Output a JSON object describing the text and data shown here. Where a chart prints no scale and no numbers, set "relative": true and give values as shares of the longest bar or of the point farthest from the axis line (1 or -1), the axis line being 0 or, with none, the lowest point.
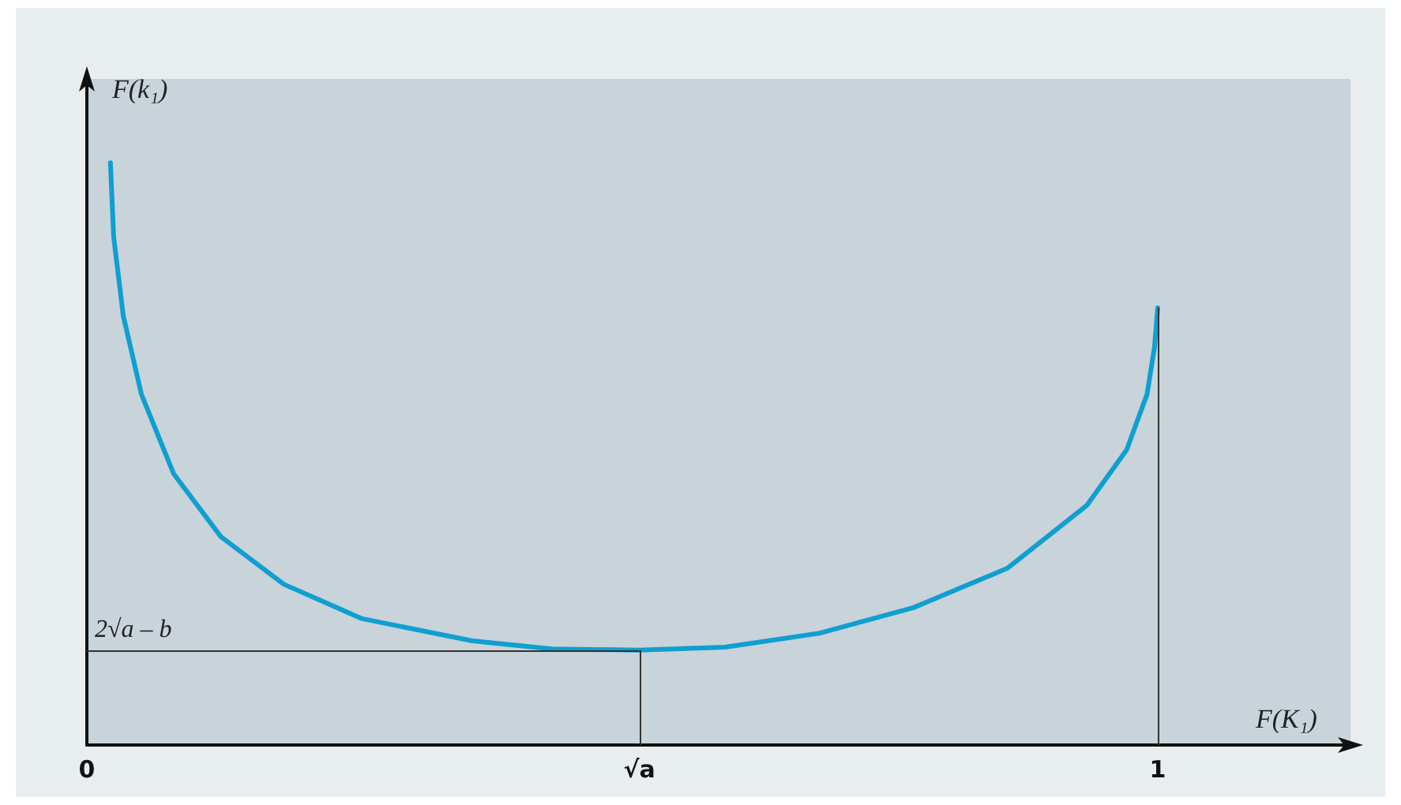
{
  "chart_data": {
    "type": "line",
    "relative": true,
    "xlabel": "F(K₁)",
    "ylabel": "F(k₁)",
    "xlim": [
      0,
      1.18
    ],
    "xticks": [
      0,
      {
        "value": 0.516,
        "label": "√a"
      },
      1
    ],
    "x": [
      0.022,
      0.025,
      0.034,
      0.051,
      0.081,
      0.125,
      0.184,
      0.257,
      0.36,
      0.434,
      0.516,
      0.596,
      0.684,
      0.772,
      0.86,
      0.934,
      0.971,
      0.99,
      0.997,
      1
    ],
    "series": [
      {
        "color": "#0f9fd0",
        "values": [
          1,
          0.873,
          0.737,
          0.602,
          0.466,
          0.358,
          0.276,
          0.217,
          0.179,
          0.165,
          0.163,
          0.168,
          0.192,
          0.236,
          0.304,
          0.412,
          0.507,
          0.602,
          0.683,
          0.751
        ]
      }
    ],
    "ref_lines": [
      {
        "axis": "x",
        "value": 0.516
      },
      {
        "axis": "x",
        "value": 1
      },
      {
        "axis": "y",
        "value": 0.163,
        "label": "2√a – b"
      }
    ],
    "marker": "none",
    "grid": false
  }
}
